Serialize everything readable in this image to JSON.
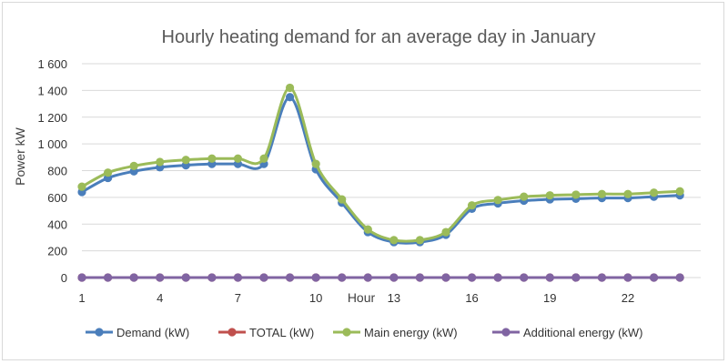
{
  "chart_data": {
    "type": "line",
    "title": "Hourly heating demand for an average day in January",
    "xlabel": "Hour",
    "ylabel": "Power kW",
    "x": [
      1,
      2,
      3,
      4,
      5,
      6,
      7,
      8,
      9,
      10,
      11,
      12,
      13,
      14,
      15,
      16,
      17,
      18,
      19,
      20,
      21,
      22,
      23,
      24
    ],
    "x_tick_labels": [
      "1",
      "4",
      "7",
      "10",
      "13",
      "16",
      "19",
      "22"
    ],
    "x_tick_values": [
      1,
      4,
      7,
      10,
      13,
      16,
      19,
      22
    ],
    "xlim": [
      1,
      24.8
    ],
    "ylim": [
      0,
      1600
    ],
    "y_ticks": [
      0,
      200,
      400,
      600,
      800,
      1000,
      1200,
      1400,
      1600
    ],
    "y_tick_labels": [
      "0",
      "200",
      "400",
      "600",
      "800",
      "1 000",
      "1 200",
      "1 400",
      "1 600"
    ],
    "grid": true,
    "legend_position": "bottom",
    "series": [
      {
        "name": "Demand (kW)",
        "color": "#4a7ebb",
        "values": [
          640,
          745,
          795,
          825,
          840,
          850,
          850,
          850,
          1350,
          810,
          560,
          340,
          265,
          265,
          320,
          515,
          555,
          575,
          585,
          590,
          595,
          595,
          605,
          615
        ]
      },
      {
        "name": "TOTAL (kW)",
        "color": "#c0504d",
        "values": [
          0,
          0,
          0,
          0,
          0,
          0,
          0,
          0,
          0,
          0,
          0,
          0,
          0,
          0,
          0,
          0,
          0,
          0,
          0,
          0,
          0,
          0,
          0,
          0
        ]
      },
      {
        "name": "Main energy (kW)",
        "color": "#9bbb59",
        "values": [
          680,
          785,
          835,
          865,
          880,
          890,
          890,
          890,
          1420,
          850,
          585,
          360,
          280,
          280,
          340,
          540,
          580,
          605,
          615,
          620,
          625,
          625,
          635,
          645
        ]
      },
      {
        "name": "Additional energy (kW)",
        "color": "#8064a2",
        "values": [
          0,
          0,
          0,
          0,
          0,
          0,
          0,
          0,
          0,
          0,
          0,
          0,
          0,
          0,
          0,
          0,
          0,
          0,
          0,
          0,
          0,
          0,
          0,
          0
        ]
      }
    ]
  }
}
